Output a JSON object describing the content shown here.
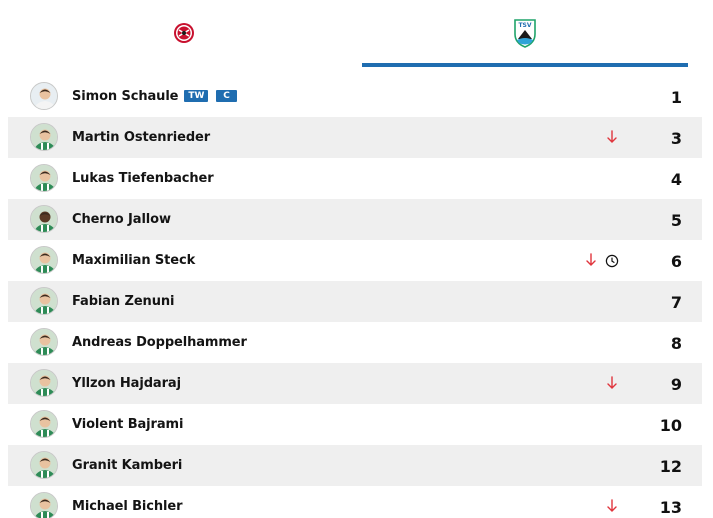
{
  "tabs": [
    {
      "team": "home",
      "logo_icon": "home-club-crest-icon",
      "active": false
    },
    {
      "team": "away",
      "logo_icon": "tsv-club-crest-icon",
      "logo_text": "TSV",
      "active": true
    }
  ],
  "colors": {
    "accent": "#1f6db0",
    "row_alt": "#efefef",
    "sub_out": "#e0353d"
  },
  "players": [
    {
      "name": "Simon Schaule",
      "number": "1",
      "badges": [
        "TW",
        "C"
      ],
      "sub_out": false,
      "clock": false
    },
    {
      "name": "Martin Ostenrieder",
      "number": "3",
      "badges": [],
      "sub_out": true,
      "clock": false
    },
    {
      "name": "Lukas Tiefenbacher",
      "number": "4",
      "badges": [],
      "sub_out": false,
      "clock": false
    },
    {
      "name": "Cherno Jallow",
      "number": "5",
      "badges": [],
      "sub_out": false,
      "clock": false
    },
    {
      "name": "Maximilian Steck",
      "number": "6",
      "badges": [],
      "sub_out": true,
      "clock": true
    },
    {
      "name": "Fabian Zenuni",
      "number": "7",
      "badges": [],
      "sub_out": false,
      "clock": false
    },
    {
      "name": "Andreas Doppelhammer",
      "number": "8",
      "badges": [],
      "sub_out": false,
      "clock": false
    },
    {
      "name": "Yllzon Hajdaraj",
      "number": "9",
      "badges": [],
      "sub_out": true,
      "clock": false
    },
    {
      "name": "Violent Bajrami",
      "number": "10",
      "badges": [],
      "sub_out": false,
      "clock": false
    },
    {
      "name": "Granit Kamberi",
      "number": "12",
      "badges": [],
      "sub_out": false,
      "clock": false
    },
    {
      "name": "Michael Bichler",
      "number": "13",
      "badges": [],
      "sub_out": true,
      "clock": false
    }
  ]
}
